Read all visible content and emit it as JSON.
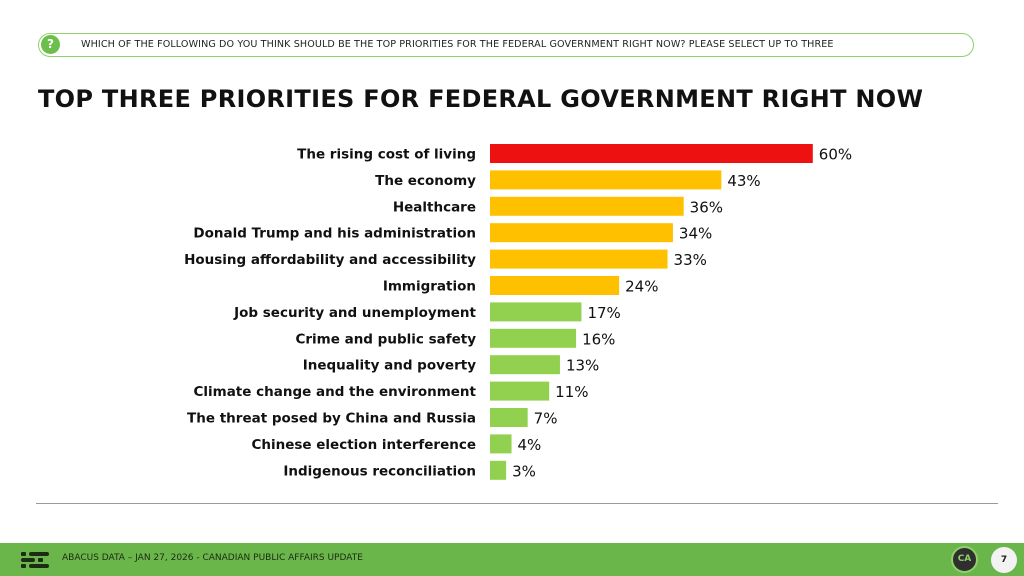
{
  "question": {
    "icon": "question-icon",
    "text": "WHICH OF THE FOLLOWING DO YOU THINK SHOULD BE THE TOP PRIORITIES FOR THE FEDERAL GOVERNMENT RIGHT NOW? PLEASE SELECT UP TO THREE"
  },
  "title": "TOP THREE PRIORITIES FOR FEDERAL GOVERNMENT RIGHT NOW",
  "colors": {
    "red": "#ee1111",
    "orange": "#ffc000",
    "green": "#92d050",
    "accent": "#6bb64a"
  },
  "chart_data": {
    "type": "bar",
    "orientation": "horizontal",
    "categories": [
      "The rising cost of living",
      "The economy",
      "Healthcare",
      "Donald Trump and his administration",
      "Housing affordability and accessibility",
      "Immigration",
      "Job security and unemployment",
      "Crime and public safety",
      "Inequality and poverty",
      "Climate change and the environment",
      "The threat posed by China and Russia",
      "Chinese election interference",
      "Indigenous reconciliation"
    ],
    "values": [
      60,
      43,
      36,
      34,
      33,
      24,
      17,
      16,
      13,
      11,
      7,
      4,
      3
    ],
    "value_labels": [
      "60%",
      "43%",
      "36%",
      "34%",
      "33%",
      "24%",
      "17%",
      "16%",
      "13%",
      "11%",
      "7%",
      "4%",
      "3%"
    ],
    "bar_colors": [
      "red",
      "orange",
      "orange",
      "orange",
      "orange",
      "orange",
      "green",
      "green",
      "green",
      "green",
      "green",
      "green",
      "green"
    ],
    "xlim": [
      0,
      100
    ],
    "grid": false,
    "legend": "none"
  },
  "footer": {
    "logo_icon": "abacus-logo-icon",
    "text": "ABACUS DATA – JAN 27, 2026 - CANADIAN PUBLIC AFFAIRS UPDATE",
    "badge": "CA",
    "page_number": "7"
  }
}
